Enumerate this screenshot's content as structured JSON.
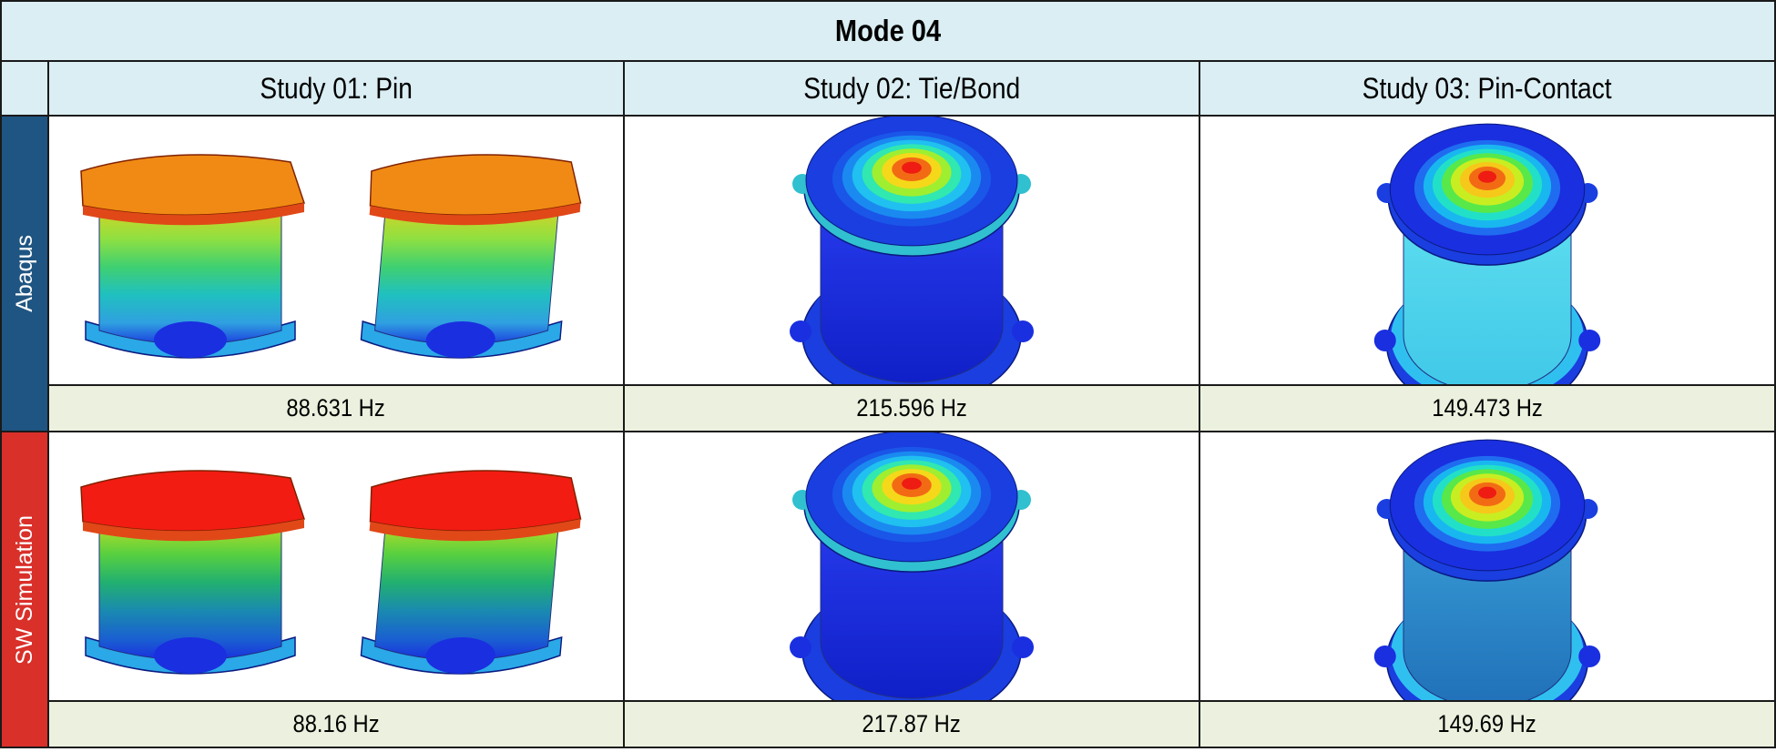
{
  "title": "Mode 04",
  "columns": [
    "Study 01: Pin",
    "Study 02: Tie/Bond",
    "Study 03: Pin-Contact"
  ],
  "rows": [
    {
      "label": "Abaqus",
      "frequencies": [
        "88.631 Hz",
        "215.596 Hz",
        "149.473 Hz"
      ]
    },
    {
      "label": "SW Simulation",
      "frequencies": [
        "88.16 Hz",
        "217.87 Hz",
        "149.69 Hz"
      ]
    }
  ]
}
